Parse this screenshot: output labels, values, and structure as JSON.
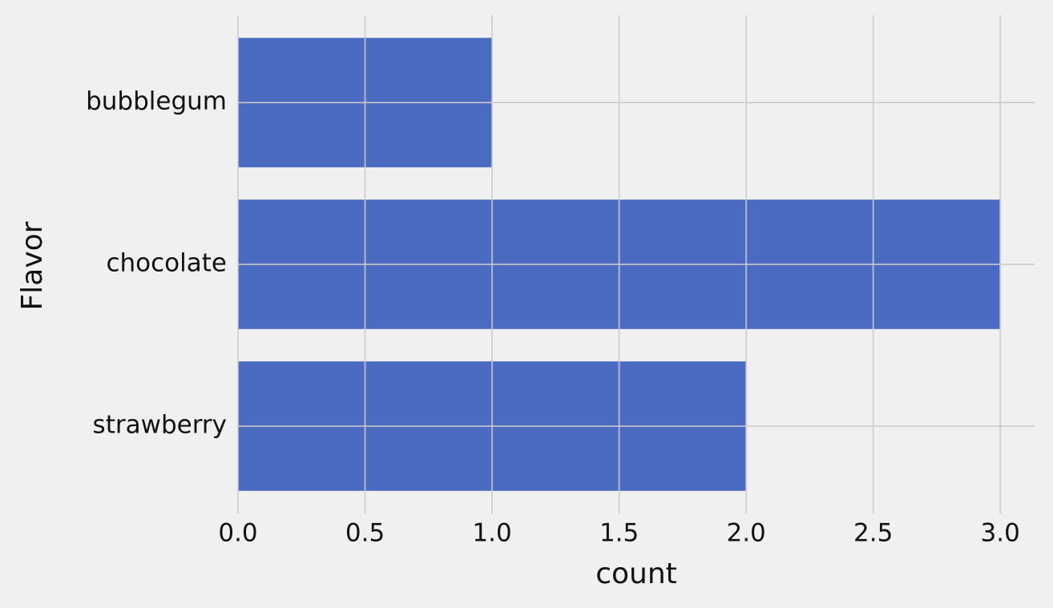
{
  "chart_data": {
    "type": "barh",
    "categories": [
      "bubblegum",
      "chocolate",
      "strawberry"
    ],
    "values": [
      1,
      3,
      2
    ],
    "color": "#3d5fbf",
    "xlabel": "count",
    "ylabel": "Flavor",
    "xlim": [
      0,
      3.135
    ],
    "xticks": [
      {
        "value": 0,
        "label": "0.0"
      },
      0.5,
      {
        "value": 1,
        "label": "1.0"
      },
      1.5,
      {
        "value": 2,
        "label": "2.0"
      },
      2.5,
      {
        "value": 3,
        "label": "3.0"
      }
    ],
    "grid": true
  }
}
